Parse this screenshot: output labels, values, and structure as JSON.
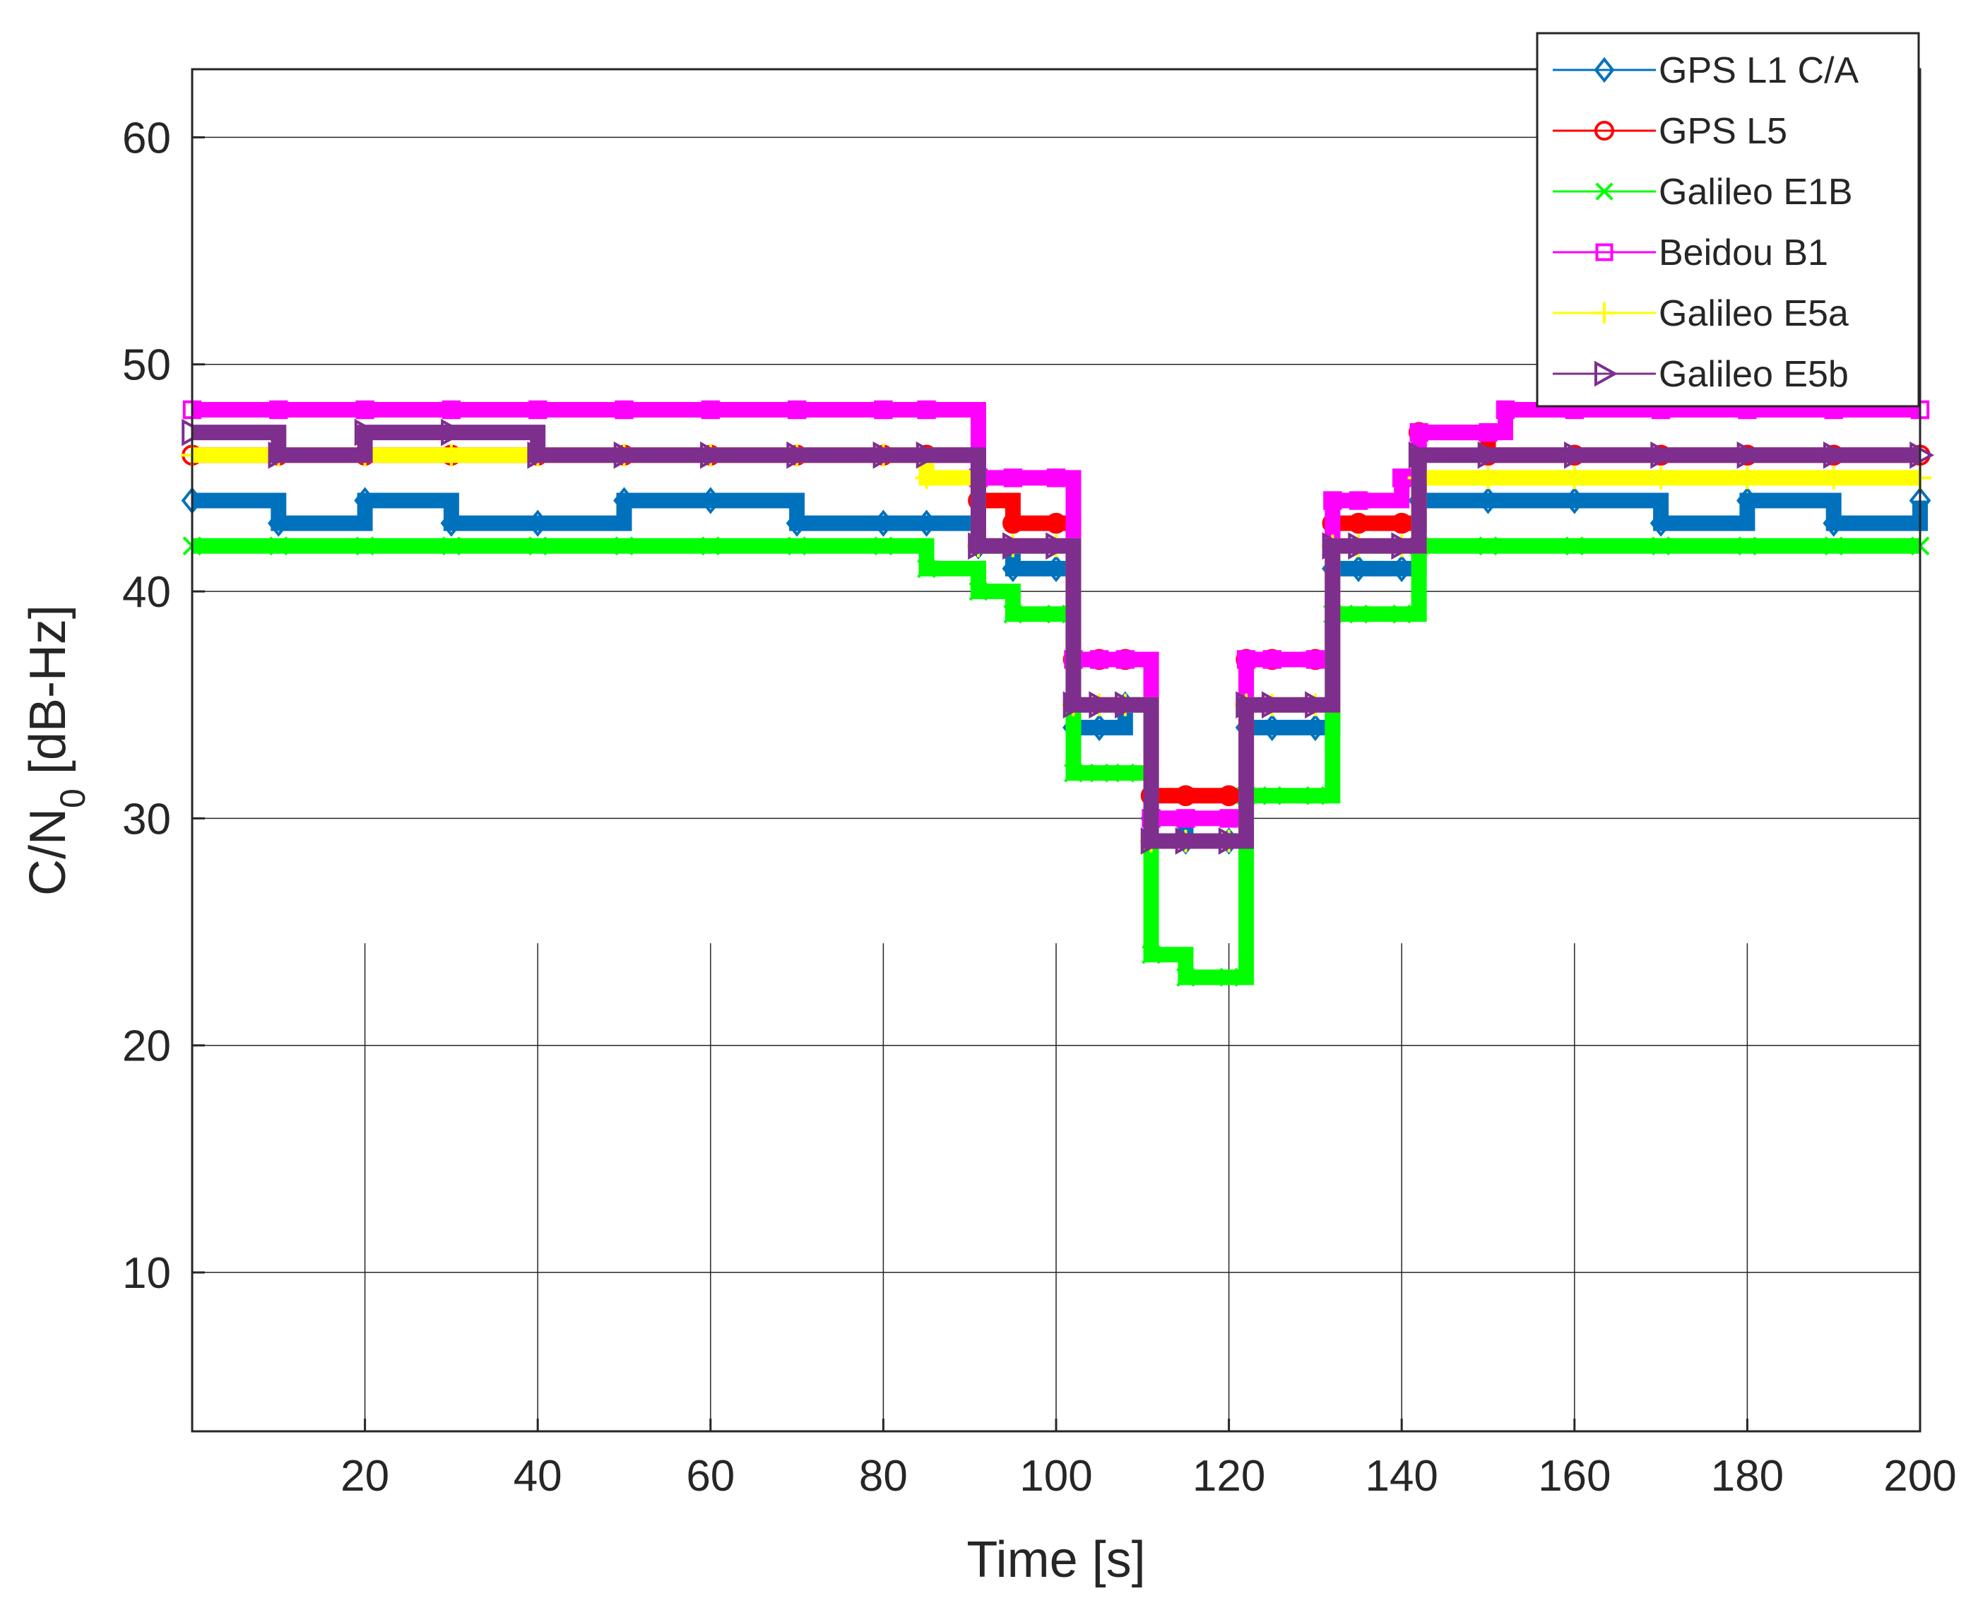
{
  "chart_data": {
    "type": "line",
    "title": "",
    "xlabel": "Time [s]",
    "ylabel_main": "C/N",
    "ylabel_sub": "0",
    "ylabel_unit": " [dB-Hz]",
    "xlim": [
      0,
      200
    ],
    "ylim": [
      3,
      63
    ],
    "xticks": [
      20,
      40,
      60,
      80,
      100,
      120,
      140,
      160,
      180,
      200
    ],
    "yticks": [
      10,
      20,
      30,
      40,
      50,
      60
    ],
    "grid": true,
    "legend_position": "top-right",
    "series": [
      {
        "name": "GPS L1 C/A",
        "color": "#0072BD",
        "marker": "diamond",
        "x": [
          0,
          10,
          20,
          30,
          40,
          50,
          60,
          70,
          80,
          85,
          91,
          95,
          100,
          102,
          105,
          108,
          111,
          115,
          120,
          122,
          125,
          130,
          132,
          135,
          140,
          142,
          150,
          160,
          170,
          180,
          190,
          200
        ],
        "y": [
          44,
          43,
          44,
          43,
          43,
          44,
          44,
          43,
          43,
          43,
          42,
          41,
          41,
          34,
          34,
          35,
          30,
          29,
          29,
          34,
          34,
          34,
          41,
          41,
          41,
          44,
          44,
          44,
          43,
          44,
          43,
          44
        ]
      },
      {
        "name": "GPS L5",
        "color": "#FF0000",
        "marker": "circle",
        "x": [
          0,
          10,
          20,
          30,
          40,
          50,
          60,
          70,
          80,
          85,
          91,
          95,
          100,
          102,
          105,
          108,
          111,
          115,
          120,
          122,
          125,
          130,
          132,
          135,
          140,
          142,
          150,
          160,
          170,
          180,
          190,
          200
        ],
        "y": [
          46,
          46,
          46,
          46,
          46,
          46,
          46,
          46,
          46,
          46,
          44,
          43,
          43,
          37,
          37,
          37,
          31,
          31,
          31,
          37,
          37,
          37,
          43,
          43,
          43,
          47,
          46,
          46,
          46,
          46,
          46,
          46
        ]
      },
      {
        "name": "Galileo E1B",
        "color": "#00FF00",
        "marker": "x",
        "x": [
          0,
          10,
          20,
          30,
          40,
          50,
          60,
          70,
          80,
          85,
          91,
          95,
          100,
          102,
          105,
          108,
          111,
          115,
          120,
          122,
          125,
          130,
          132,
          135,
          140,
          142,
          150,
          160,
          170,
          180,
          190,
          200
        ],
        "y": [
          42,
          42,
          42,
          42,
          42,
          42,
          42,
          42,
          42,
          41,
          40,
          39,
          39,
          32,
          32,
          32,
          24,
          23,
          23,
          31,
          31,
          31,
          39,
          39,
          39,
          42,
          42,
          42,
          42,
          42,
          42,
          42
        ]
      },
      {
        "name": "Beidou B1",
        "color": "#FF00FF",
        "marker": "square",
        "x": [
          0,
          10,
          20,
          30,
          40,
          50,
          60,
          70,
          80,
          85,
          91,
          95,
          100,
          102,
          105,
          108,
          111,
          115,
          120,
          122,
          125,
          130,
          132,
          135,
          140,
          142,
          150,
          152,
          160,
          170,
          180,
          190,
          200
        ],
        "y": [
          48,
          48,
          48,
          48,
          48,
          48,
          48,
          48,
          48,
          48,
          45,
          45,
          45,
          37,
          37,
          37,
          30,
          30,
          30,
          37,
          37,
          37,
          44,
          44,
          45,
          47,
          47,
          48,
          48,
          48,
          48,
          48,
          48
        ]
      },
      {
        "name": "Galileo E5a",
        "color": "#FFFF00",
        "marker": "plus",
        "x": [
          0,
          10,
          20,
          30,
          40,
          50,
          60,
          70,
          80,
          85,
          91,
          95,
          100,
          102,
          105,
          108,
          111,
          115,
          120,
          122,
          125,
          130,
          132,
          135,
          140,
          142,
          150,
          160,
          170,
          180,
          190,
          200
        ],
        "y": [
          46,
          46,
          46,
          46,
          46,
          46,
          46,
          46,
          46,
          45,
          42,
          42,
          42,
          35,
          35,
          35,
          29,
          29,
          29,
          35,
          35,
          35,
          42,
          42,
          42,
          45,
          45,
          45,
          45,
          45,
          45,
          45
        ]
      },
      {
        "name": "Galileo  E5b",
        "color": "#7E2F8E",
        "marker": "triangle-right",
        "x": [
          0,
          10,
          20,
          30,
          40,
          50,
          60,
          70,
          80,
          85,
          91,
          95,
          100,
          102,
          105,
          108,
          111,
          115,
          120,
          122,
          125,
          130,
          132,
          135,
          140,
          142,
          150,
          160,
          170,
          180,
          190,
          200
        ],
        "y": [
          47,
          46,
          47,
          47,
          46,
          46,
          46,
          46,
          46,
          46,
          42,
          42,
          42,
          35,
          35,
          35,
          29,
          29,
          29,
          35,
          35,
          35,
          42,
          42,
          42,
          46,
          46,
          46,
          46,
          46,
          46,
          46
        ]
      }
    ]
  }
}
